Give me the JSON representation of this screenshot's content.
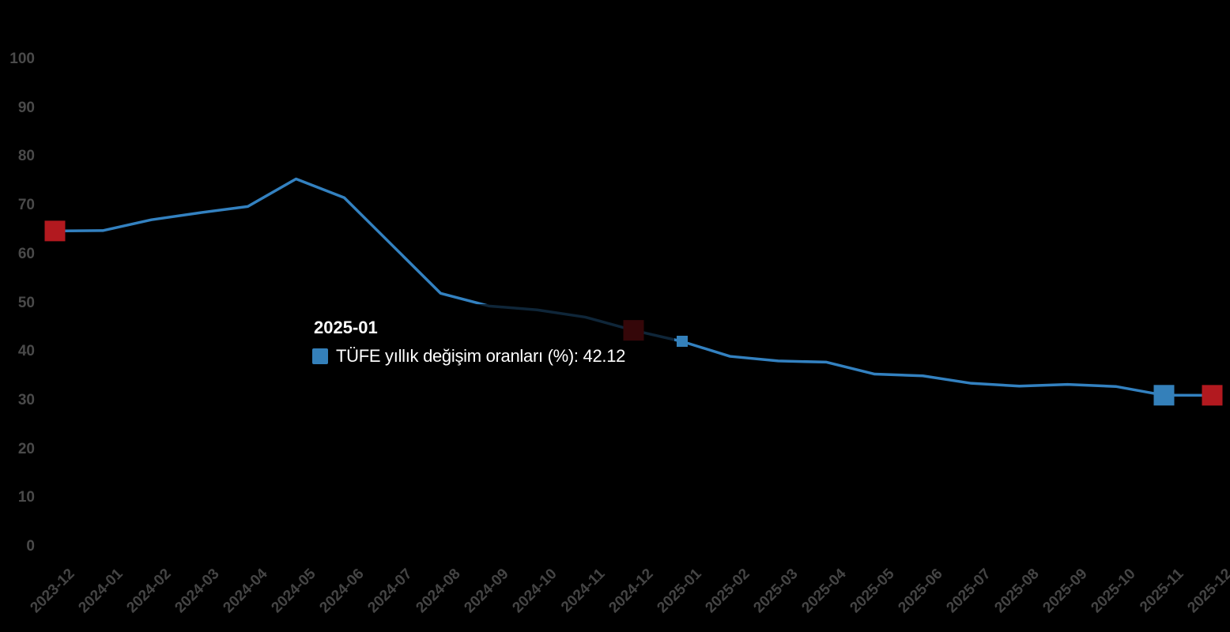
{
  "colors": {
    "background": "#000000",
    "series_line_blue": "#3381c0",
    "marker_blue": "#3480ba",
    "marker_red": "#b2191f",
    "axis_label_gray": "#4a4a4a",
    "tooltip_background": "rgba(0,0,0,0.70)",
    "tooltip_text": "#ffffff"
  },
  "chart_data": {
    "type": "line",
    "title": "",
    "xlabel": "",
    "ylabel": "",
    "categories": [
      "2023-12",
      "2024-01",
      "2024-02",
      "2024-03",
      "2024-04",
      "2024-05",
      "2024-06",
      "2024-07",
      "2024-08",
      "2024-09",
      "2024-10",
      "2024-11",
      "2024-12",
      "2025-01",
      "2025-02",
      "2025-03",
      "2025-04",
      "2025-05",
      "2025-06",
      "2025-07",
      "2025-08",
      "2025-09",
      "2025-10",
      "2025-11",
      "2025-12"
    ],
    "series": [
      {
        "name": "TÜFE yıllık değişim oranları (%)",
        "values": [
          64.77,
          64.86,
          67.07,
          68.5,
          69.8,
          75.45,
          71.6,
          61.78,
          51.97,
          49.38,
          48.58,
          47.09,
          44.38,
          42.12,
          39.05,
          38.1,
          37.86,
          35.41,
          35.05,
          33.52,
          32.95,
          33.29,
          32.87,
          31.07,
          31.06
        ]
      }
    ],
    "ylim": [
      0,
      100
    ],
    "y_tick_step": 10,
    "grid": "off",
    "legend": "none",
    "markers": [
      {
        "category": "2023-12",
        "color": "red"
      },
      {
        "category": "2024-12",
        "color": "red",
        "note": "dimmed under tooltip overlay"
      },
      {
        "category": "2025-11",
        "color": "blue"
      },
      {
        "category": "2025-12",
        "color": "red"
      }
    ],
    "hover_point": {
      "category": "2025-01",
      "value": 42.12,
      "color": "blue"
    }
  },
  "y_axis": {
    "labels": [
      "100",
      "90",
      "80",
      "70",
      "60",
      "50",
      "40",
      "30",
      "20",
      "10",
      "0"
    ]
  },
  "x_axis": {
    "labels": [
      "2023-12",
      "2024-01",
      "2024-02",
      "2024-03",
      "2024-04",
      "2024-05",
      "2024-06",
      "2024-07",
      "2024-08",
      "2024-09",
      "2024-10",
      "2024-11",
      "2024-12",
      "2025-01",
      "2025-02",
      "2025-03",
      "2025-04",
      "2025-05",
      "2025-06",
      "2025-07",
      "2025-08",
      "2025-09",
      "2025-10",
      "2025-11",
      "2025-12"
    ],
    "rotation_deg": -45
  },
  "tooltip": {
    "title": "2025-01",
    "series_name": "TÜFE yıllık değişim oranları (%)",
    "value": "42.12",
    "text": "TÜFE yıllık değişim oranları (%): 42.12"
  }
}
